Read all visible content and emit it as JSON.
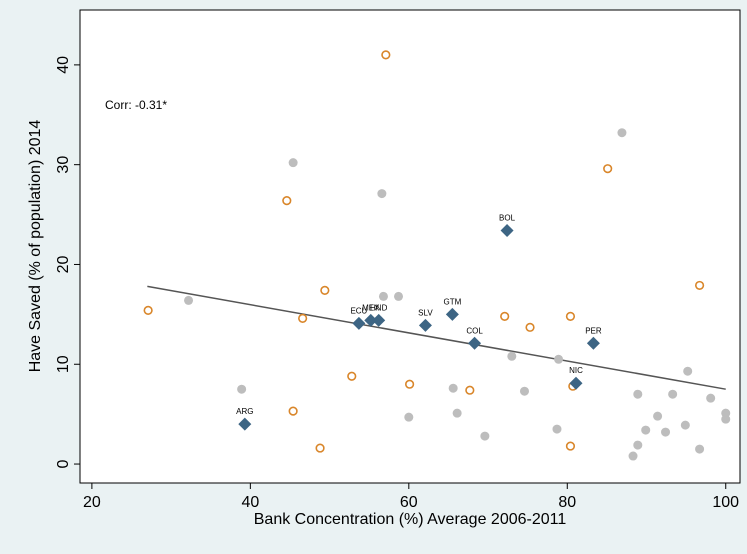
{
  "chart_data": {
    "type": "scatter",
    "xlabel": "Bank Concentration (%) Average 2006-2011",
    "ylabel": "Have Saved (% of population) 2014",
    "annotation": "Corr: -0.31*",
    "xlim": [
      18.5,
      101.8
    ],
    "ylim": [
      -1.9,
      45.5
    ],
    "xticks": [
      20,
      40,
      60,
      80,
      100
    ],
    "yticks": [
      0,
      10,
      20,
      30,
      40
    ],
    "series": [
      {
        "color": "#bdbdbd",
        "marker": "dot",
        "x": [
          32.2,
          38.9,
          45.4,
          56.6,
          56.8,
          58.7,
          60.0,
          65.6,
          66.1,
          69.6,
          73.0,
          74.6,
          78.7,
          78.9,
          86.9,
          88.9,
          88.9,
          88.3,
          89.9,
          91.4,
          92.4,
          93.3,
          94.9,
          95.2,
          96.7,
          98.1,
          100,
          100
        ],
        "values": [
          16.4,
          7.5,
          30.2,
          27.1,
          16.8,
          16.8,
          4.7,
          7.6,
          5.1,
          2.8,
          10.8,
          7.3,
          3.5,
          10.5,
          33.2,
          7.0,
          1.9,
          0.8,
          3.4,
          4.8,
          3.2,
          7.0,
          3.9,
          9.3,
          1.5,
          6.6,
          5.1,
          4.5
        ]
      },
      {
        "color": "#d9862a",
        "marker": "hollow",
        "x": [
          27.1,
          44.6,
          45.4,
          46.6,
          48.8,
          49.4,
          52.8,
          57.1,
          60.1,
          67.7,
          72.1,
          75.3,
          80.4,
          80.4,
          80.7,
          85.1,
          96.7
        ],
        "values": [
          15.4,
          26.4,
          5.3,
          14.6,
          1.6,
          17.4,
          8.8,
          41.0,
          8.0,
          7.4,
          14.8,
          13.7,
          14.8,
          1.8,
          7.8,
          29.6,
          17.9
        ]
      },
      {
        "color": "#3d6584",
        "marker": "diamond",
        "x": [
          39.3,
          53.7,
          55.2,
          56.2,
          62.1,
          65.5,
          68.3,
          72.4,
          83.3,
          81.1
        ],
        "values": [
          4.0,
          14.1,
          14.4,
          14.4,
          13.9,
          15.0,
          12.1,
          23.4,
          12.1,
          8.1
        ],
        "labels": [
          "ARG",
          "ECU",
          "MEX",
          "HND",
          "SLV",
          "GTM",
          "COL",
          "BOL",
          "PER",
          "NIC"
        ]
      }
    ],
    "fit": {
      "color": "#555555",
      "x": [
        27,
        100
      ],
      "values": [
        17.8,
        7.5
      ]
    }
  }
}
